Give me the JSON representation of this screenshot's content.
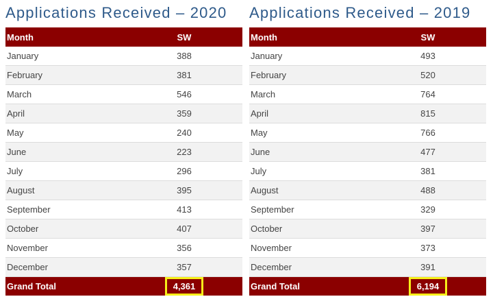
{
  "tables": [
    {
      "title": "Applications Received – 2020",
      "header": {
        "month": "Month",
        "value": "SW"
      },
      "rows": [
        {
          "month": "January",
          "value": "388"
        },
        {
          "month": "February",
          "value": "381"
        },
        {
          "month": "March",
          "value": "546"
        },
        {
          "month": "April",
          "value": "359"
        },
        {
          "month": "May",
          "value": "240"
        },
        {
          "month": "June",
          "value": "223"
        },
        {
          "month": "July",
          "value": "296"
        },
        {
          "month": "August",
          "value": "395"
        },
        {
          "month": "September",
          "value": "413"
        },
        {
          "month": "October",
          "value": "407"
        },
        {
          "month": "November",
          "value": "356"
        },
        {
          "month": "December",
          "value": "357"
        }
      ],
      "total": {
        "label": "Grand Total",
        "value": "4,361"
      }
    },
    {
      "title": "Applications Received – 2019",
      "header": {
        "month": "Month",
        "value": "SW"
      },
      "rows": [
        {
          "month": "January",
          "value": "493"
        },
        {
          "month": "February",
          "value": "520"
        },
        {
          "month": "March",
          "value": "764"
        },
        {
          "month": "April",
          "value": "815"
        },
        {
          "month": "May",
          "value": "766"
        },
        {
          "month": "June",
          "value": "477"
        },
        {
          "month": "July",
          "value": "381"
        },
        {
          "month": "August",
          "value": "488"
        },
        {
          "month": "September",
          "value": "329"
        },
        {
          "month": "October",
          "value": "397"
        },
        {
          "month": "November",
          "value": "373"
        },
        {
          "month": "December",
          "value": "391"
        }
      ],
      "total": {
        "label": "Grand Total",
        "value": "6,194"
      }
    }
  ],
  "colors": {
    "title": "#2e5a8a",
    "header_bg": "#8b0000",
    "highlight": "#f7ef1a",
    "stripe": "#f2f2f2"
  }
}
